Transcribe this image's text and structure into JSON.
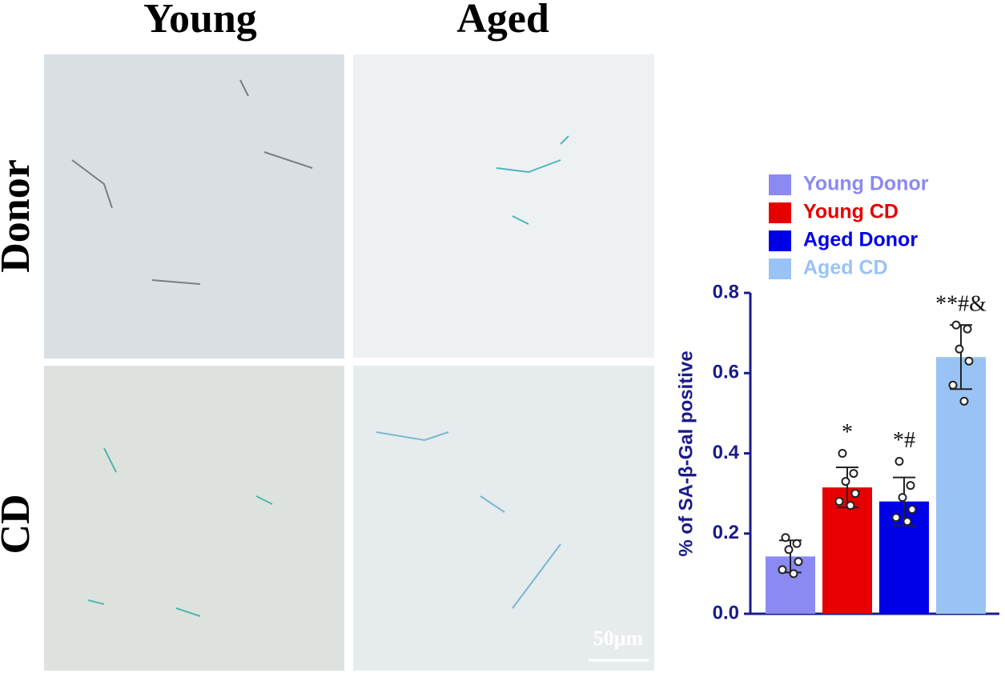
{
  "panels": {
    "columns": [
      "Young",
      "Aged"
    ],
    "rows": [
      "Donor",
      "CD"
    ],
    "scale_bar": "50μm"
  },
  "chart_data": {
    "type": "bar",
    "ylabel": "% of SA-β-Gal positive",
    "ylim": [
      0,
      0.8
    ],
    "yticks": [
      {
        "value": 0,
        "label": "0.0"
      },
      0.2,
      0.4,
      0.6,
      0.8
    ],
    "series": [
      {
        "name": "Young Donor",
        "color": "#8a8af2",
        "values": [
          0.143
        ],
        "errors": [
          0.04
        ],
        "points": [
          0.19,
          0.175,
          0.16,
          0.13,
          0.11,
          0.1
        ]
      },
      {
        "name": "Young CD",
        "color": "#e60000",
        "values": [
          0.315
        ],
        "errors": [
          0.05
        ],
        "points": [
          0.4,
          0.35,
          0.33,
          0.3,
          0.28,
          0.27
        ],
        "annotation": "*"
      },
      {
        "name": "Aged Donor",
        "color": "#0000e6",
        "values": [
          0.28
        ],
        "errors": [
          0.06
        ],
        "points": [
          0.38,
          0.32,
          0.29,
          0.26,
          0.24,
          0.23
        ],
        "annotation": "*#"
      },
      {
        "name": "Aged CD",
        "color": "#9ac3f5",
        "values": [
          0.64
        ],
        "errors": [
          0.08
        ],
        "points": [
          0.72,
          0.71,
          0.66,
          0.63,
          0.57,
          0.53
        ],
        "annotation": "**#&"
      }
    ]
  }
}
